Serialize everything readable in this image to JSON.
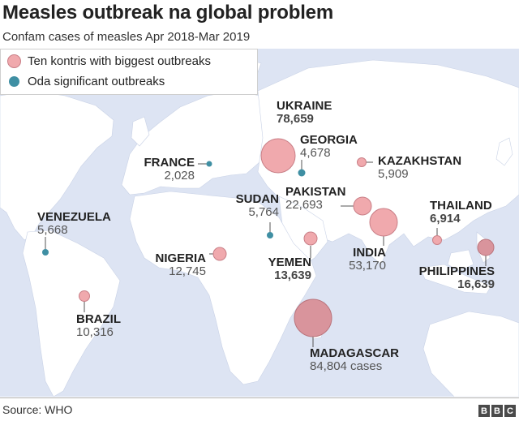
{
  "title": "Measles outbreak na global problem",
  "subtitle": "Confam cases of measles Apr 2018-Mar 2019",
  "legend": {
    "major": "Ten kontris with biggest outbreaks",
    "other": "Oda significant outbreaks"
  },
  "colors": {
    "ocean": "#dde4f3",
    "land": "#ffffff",
    "major_fill": "#f0a9ad",
    "major_fill_large": "#d9949c",
    "major_stroke": "#c97f87",
    "other_fill": "#3f8fa3",
    "leader": "#555555"
  },
  "countries": [
    {
      "name": "UKRAINE",
      "cases": "78,659",
      "group": "major"
    },
    {
      "name": "GEORGIA",
      "cases": "4,678",
      "group": "other"
    },
    {
      "name": "FRANCE",
      "cases": "2,028",
      "group": "other"
    },
    {
      "name": "KAZAKHSTAN",
      "cases": "5,909",
      "group": "major"
    },
    {
      "name": "SUDAN",
      "cases": "5,764",
      "group": "other"
    },
    {
      "name": "PAKISTAN",
      "cases": "22,693",
      "group": "major"
    },
    {
      "name": "THAILAND",
      "cases": "6,914",
      "group": "major"
    },
    {
      "name": "VENEZUELA",
      "cases": "5,668",
      "group": "other"
    },
    {
      "name": "NIGERIA",
      "cases": "12,745",
      "group": "major"
    },
    {
      "name": "YEMEN",
      "cases": "13,639",
      "group": "major"
    },
    {
      "name": "INDIA",
      "cases": "53,170",
      "group": "major"
    },
    {
      "name": "PHILIPPINES",
      "cases": "16,639",
      "group": "major"
    },
    {
      "name": "BRAZIL",
      "cases": "10,316",
      "group": "major"
    },
    {
      "name": "MADAGASCAR",
      "cases": "84,804 cases",
      "group": "major"
    }
  ],
  "source": "Source: WHO",
  "logo": "BBC"
}
